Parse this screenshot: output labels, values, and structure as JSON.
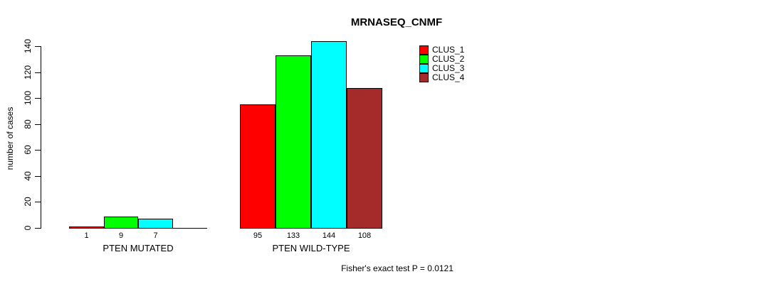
{
  "chart_data": {
    "type": "bar",
    "title": "MRNASEQ_CNMF",
    "ylabel": "number of cases",
    "xlabel": "",
    "ylim": [
      0,
      140
    ],
    "yticks": [
      0,
      20,
      40,
      60,
      80,
      100,
      120,
      140
    ],
    "grid": false,
    "legend_position": "top-right",
    "categories": [
      "PTEN MUTATED",
      "PTEN WILD-TYPE"
    ],
    "series": [
      {
        "name": "CLUS_1",
        "color": "#FF0000",
        "values": [
          1,
          95
        ]
      },
      {
        "name": "CLUS_2",
        "color": "#00FF00",
        "values": [
          9,
          133
        ]
      },
      {
        "name": "CLUS_3",
        "color": "#00FFFF",
        "values": [
          7,
          144
        ]
      },
      {
        "name": "CLUS_4",
        "color": "#A52A2A",
        "values": [
          0,
          108
        ]
      }
    ],
    "value_labels": [
      [
        "1",
        "9",
        "7"
      ],
      [
        "95",
        "133",
        "144",
        "108"
      ]
    ],
    "annotation": "Fisher's exact test P = 0.0121"
  }
}
